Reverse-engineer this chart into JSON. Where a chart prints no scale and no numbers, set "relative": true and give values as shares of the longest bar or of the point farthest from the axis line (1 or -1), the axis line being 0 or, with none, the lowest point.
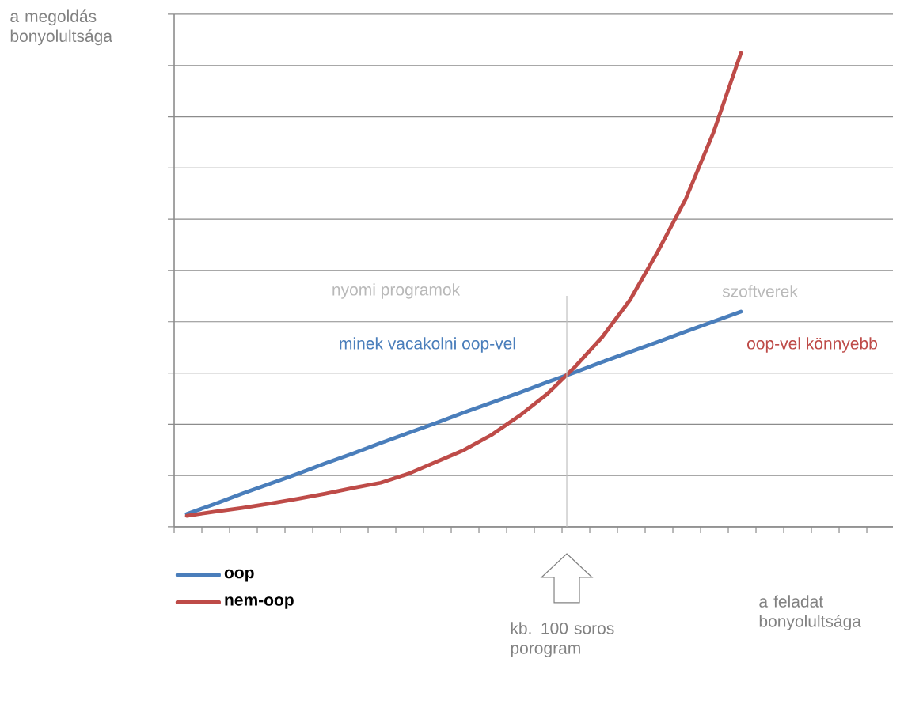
{
  "chart_data": {
    "type": "line",
    "relative": true,
    "ylabel": "a megoldás bonyolultsága",
    "xlabel": "a feladat bonyolultsága",
    "categories": [
      null,
      null,
      null,
      null,
      null,
      null,
      null,
      null,
      null,
      null,
      null,
      null,
      null,
      null,
      null,
      null,
      null,
      null,
      null,
      null,
      null
    ],
    "series": [
      {
        "name": "oop",
        "color": "#4a7ebb",
        "values": [
          0.027,
          0.048,
          0.07,
          0.091,
          0.112,
          0.134,
          0.155,
          0.177,
          0.198,
          0.219,
          0.241,
          0.262,
          0.283,
          0.305,
          0.326,
          0.348,
          0.369,
          0.39,
          0.412,
          0.433,
          0.454
        ]
      },
      {
        "name": "nem-oop",
        "color": "#be4b48",
        "values": [
          0.023,
          0.032,
          0.04,
          0.049,
          0.059,
          0.07,
          0.082,
          0.093,
          0.112,
          0.137,
          0.162,
          0.194,
          0.234,
          0.28,
          0.337,
          0.401,
          0.479,
          0.581,
          0.691,
          0.831,
          1
        ]
      }
    ],
    "annotations": [
      "nyomi programok",
      "szoftverek",
      "minek vacakolni oop-vel",
      "oop-vel könnyebb",
      "kb. 100 soros porogram"
    ],
    "grid": "y",
    "legend": "bottom left"
  }
}
